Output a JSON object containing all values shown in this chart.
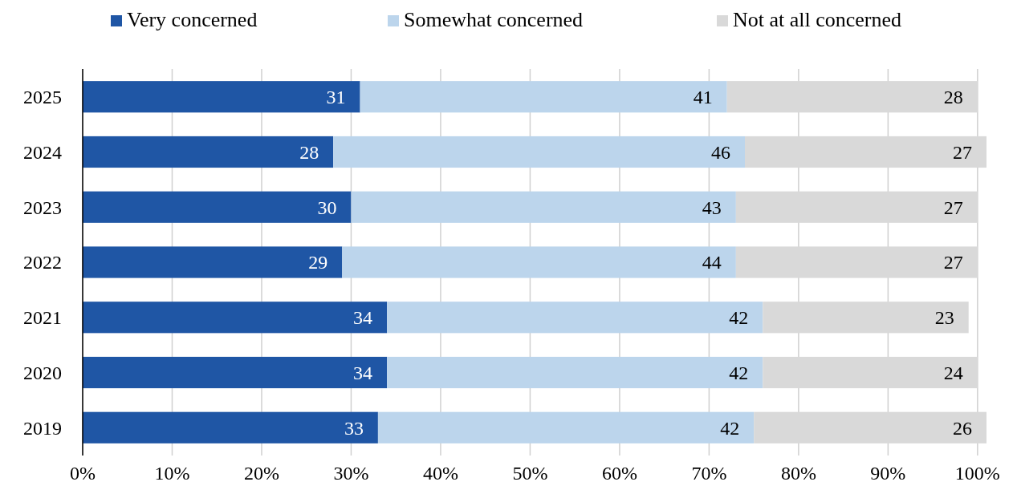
{
  "chart_data": {
    "type": "bar",
    "orientation": "horizontal",
    "stacked": true,
    "categories": [
      "2025",
      "2024",
      "2023",
      "2022",
      "2021",
      "2020",
      "2019"
    ],
    "series": [
      {
        "name": "Very concerned",
        "color": "#1f56a5",
        "values": [
          31,
          28,
          30,
          29,
          34,
          34,
          33
        ]
      },
      {
        "name": "Somewhat concerned",
        "color": "#bcd5ec",
        "values": [
          41,
          46,
          43,
          44,
          42,
          42,
          42
        ]
      },
      {
        "name": "Not at all concerned",
        "color": "#d9d9d9",
        "values": [
          28,
          27,
          27,
          27,
          23,
          24,
          26
        ]
      }
    ],
    "xlim": [
      0,
      101
    ],
    "xticks": [
      {
        "value": 0,
        "label": "0%"
      },
      {
        "value": 10,
        "label": "10%"
      },
      {
        "value": 20,
        "label": "20%"
      },
      {
        "value": 30,
        "label": "30%"
      },
      {
        "value": 40,
        "label": "40%"
      },
      {
        "value": 50,
        "label": "50%"
      },
      {
        "value": 60,
        "label": "60%"
      },
      {
        "value": 70,
        "label": "70%"
      },
      {
        "value": 80,
        "label": "80%"
      },
      {
        "value": 90,
        "label": "90%"
      },
      {
        "value": 100,
        "label": "100%"
      }
    ],
    "grid": "x",
    "legend": "top",
    "data_labels": true
  }
}
